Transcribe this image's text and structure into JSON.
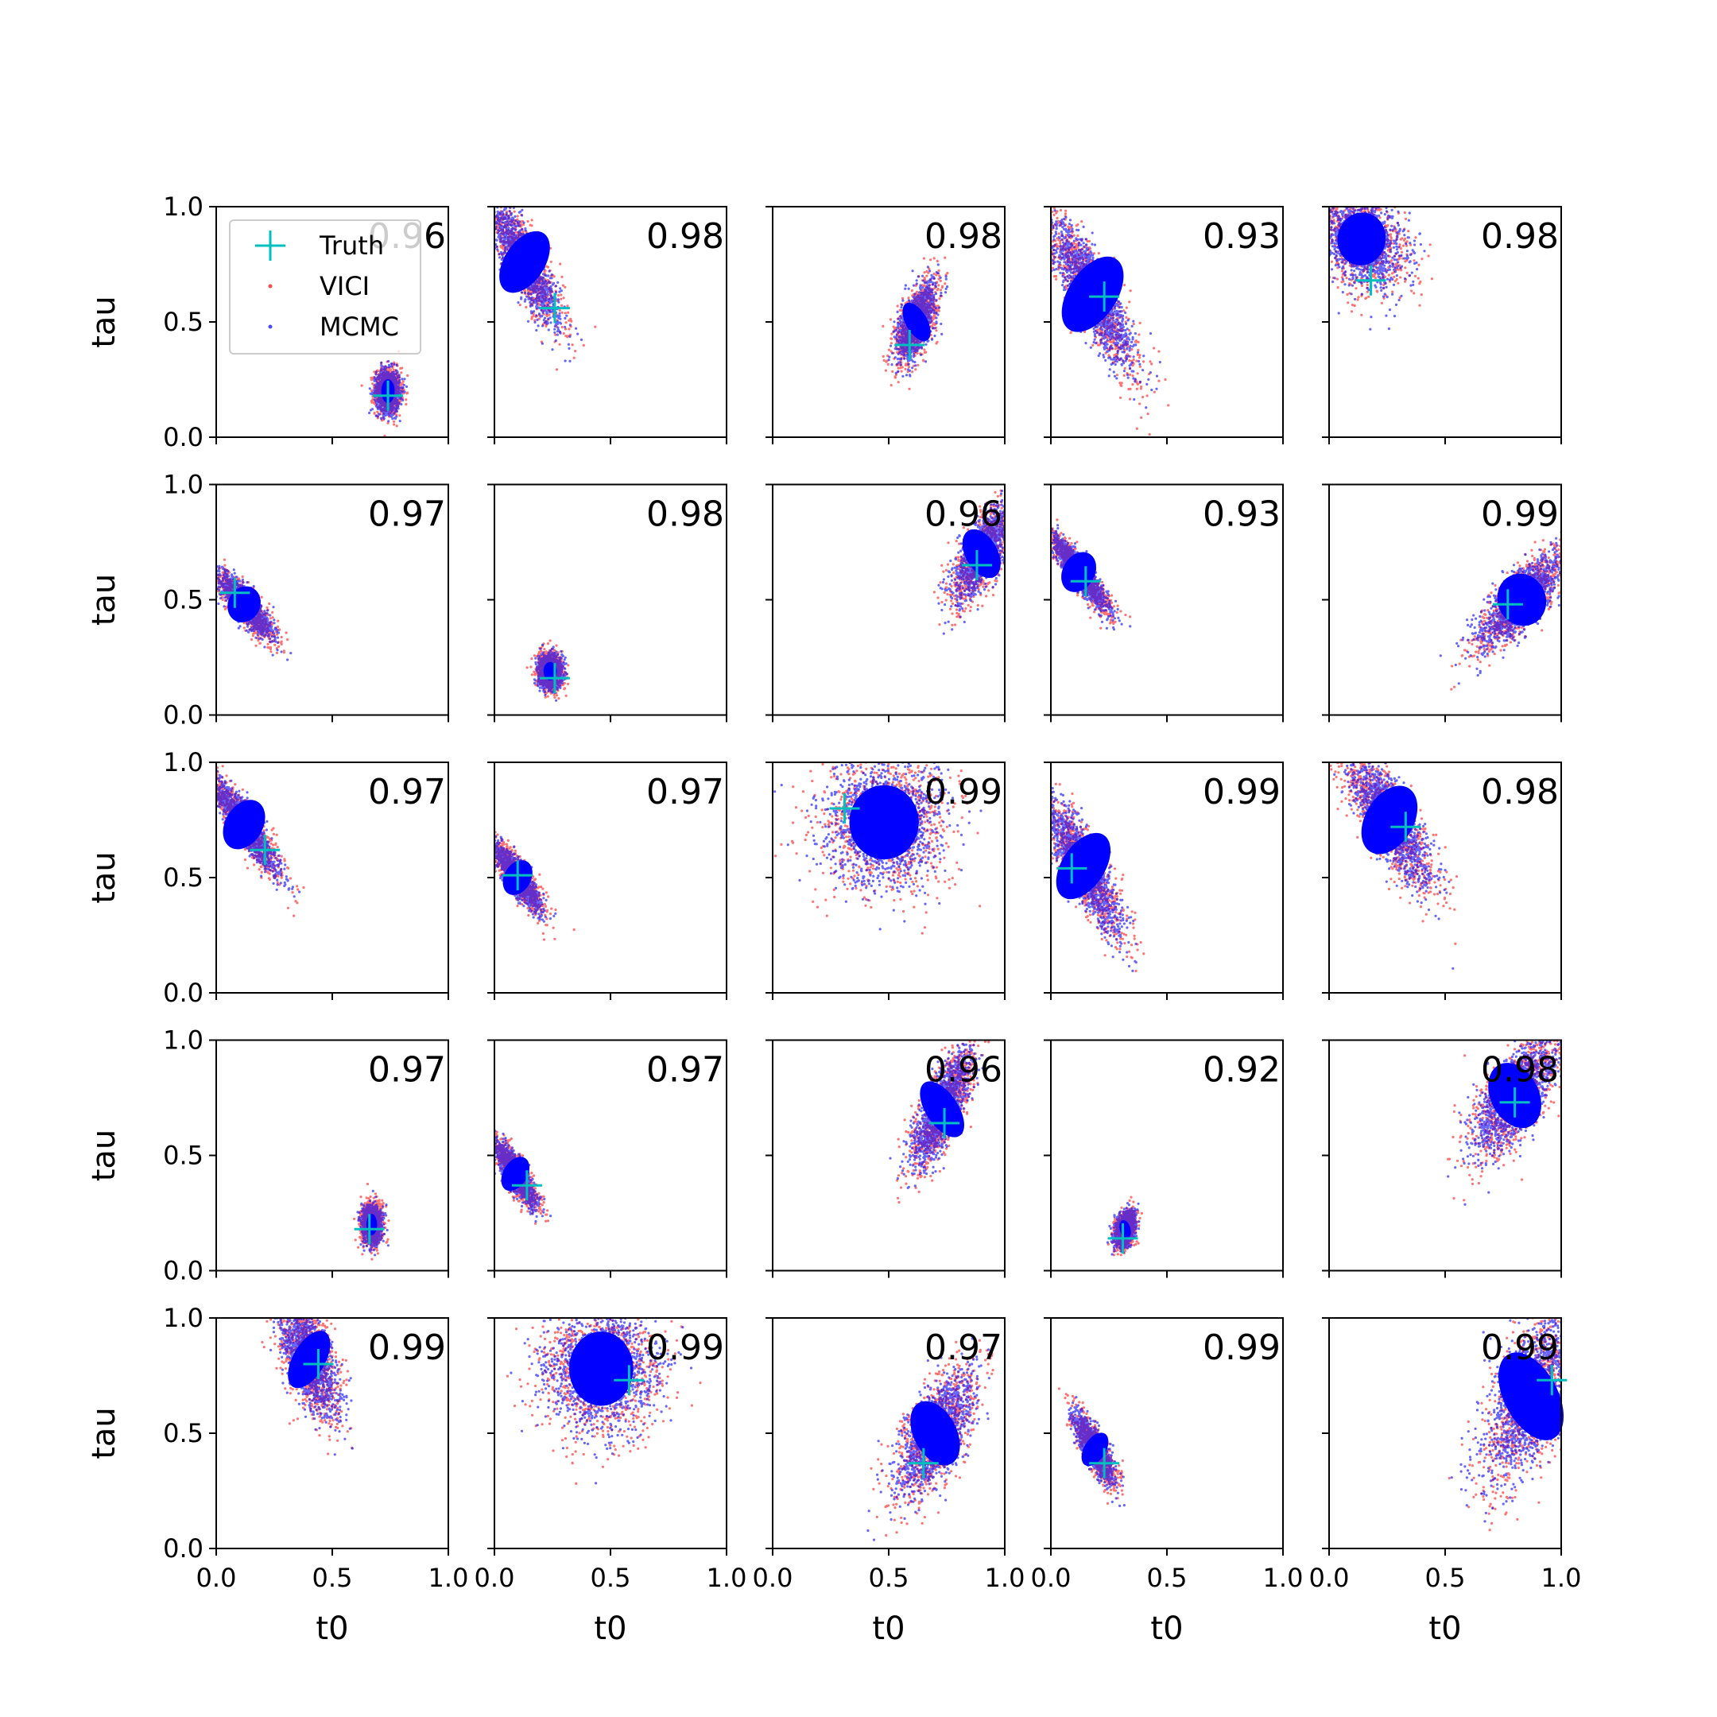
{
  "chart_data": {
    "type": "scatter",
    "grid": {
      "rows": 5,
      "cols": 5
    },
    "xlabel": "t0",
    "ylabel": "tau",
    "xlim": [
      0,
      1
    ],
    "ylim": [
      0,
      1
    ],
    "ticks": [
      0.0,
      0.5,
      1.0
    ],
    "tick_labels": [
      "0.0",
      "0.5",
      "1.0"
    ],
    "grid_lines": false,
    "legend": {
      "placement": "top-left of first panel",
      "entries": [
        {
          "label": "Truth",
          "marker": "plus",
          "color": "#00bfbf"
        },
        {
          "label": "VICI",
          "marker": "dot",
          "color": "#ff0000"
        },
        {
          "label": "MCMC",
          "marker": "dot",
          "color": "#0000ff"
        }
      ]
    },
    "colors": {
      "truth": "#00bfbf",
      "vici": "#ff0000",
      "mcmc": "#0000ff"
    },
    "panels": [
      {
        "score": "0.96",
        "truth": [
          0.74,
          0.18
        ],
        "cloud": {
          "cx": 0.74,
          "cy": 0.2,
          "sx": 0.025,
          "sy": 0.045,
          "rho": 0.0
        }
      },
      {
        "score": "0.98",
        "truth": [
          0.26,
          0.56
        ],
        "cloud": {
          "cx": 0.13,
          "cy": 0.76,
          "sx": 0.075,
          "sy": 0.13,
          "rho": -0.85
        }
      },
      {
        "score": "0.98",
        "truth": [
          0.59,
          0.4
        ],
        "cloud": {
          "cx": 0.62,
          "cy": 0.5,
          "sx": 0.04,
          "sy": 0.08,
          "rho": 0.6
        }
      },
      {
        "score": "0.93",
        "truth": [
          0.23,
          0.61
        ],
        "cloud": {
          "cx": 0.18,
          "cy": 0.62,
          "sx": 0.09,
          "sy": 0.16,
          "rho": -0.85
        }
      },
      {
        "score": "0.98",
        "truth": [
          0.18,
          0.68
        ],
        "cloud": {
          "cx": 0.14,
          "cy": 0.86,
          "sx": 0.09,
          "sy": 0.1,
          "rho": -0.3
        }
      },
      {
        "score": "0.97",
        "truth": [
          0.08,
          0.53
        ],
        "cloud": {
          "cx": 0.12,
          "cy": 0.48,
          "sx": 0.06,
          "sy": 0.07,
          "rho": -0.85
        }
      },
      {
        "score": "0.98",
        "truth": [
          0.26,
          0.16
        ],
        "cloud": {
          "cx": 0.24,
          "cy": 0.19,
          "sx": 0.025,
          "sy": 0.035,
          "rho": 0.0
        }
      },
      {
        "score": "0.96",
        "truth": [
          0.88,
          0.65
        ],
        "cloud": {
          "cx": 0.9,
          "cy": 0.7,
          "sx": 0.06,
          "sy": 0.1,
          "rho": 0.7
        }
      },
      {
        "score": "0.93",
        "truth": [
          0.15,
          0.58
        ],
        "cloud": {
          "cx": 0.12,
          "cy": 0.62,
          "sx": 0.06,
          "sy": 0.08,
          "rho": -0.9
        }
      },
      {
        "score": "0.99",
        "truth": [
          0.77,
          0.48
        ],
        "cloud": {
          "cx": 0.83,
          "cy": 0.5,
          "sx": 0.09,
          "sy": 0.1,
          "rho": 0.8
        }
      },
      {
        "score": "0.97",
        "truth": [
          0.21,
          0.62
        ],
        "cloud": {
          "cx": 0.12,
          "cy": 0.73,
          "sx": 0.07,
          "sy": 0.1,
          "rho": -0.9
        }
      },
      {
        "score": "0.97",
        "truth": [
          0.1,
          0.51
        ],
        "cloud": {
          "cx": 0.1,
          "cy": 0.5,
          "sx": 0.05,
          "sy": 0.07,
          "rho": -0.85
        }
      },
      {
        "score": "0.99",
        "truth": [
          0.31,
          0.8
        ],
        "cloud": {
          "cx": 0.48,
          "cy": 0.74,
          "sx": 0.13,
          "sy": 0.14,
          "rho": 0.0
        }
      },
      {
        "score": "0.99",
        "truth": [
          0.09,
          0.54
        ],
        "cloud": {
          "cx": 0.14,
          "cy": 0.55,
          "sx": 0.08,
          "sy": 0.14,
          "rho": -0.85
        }
      },
      {
        "score": "0.98",
        "truth": [
          0.33,
          0.72
        ],
        "cloud": {
          "cx": 0.26,
          "cy": 0.75,
          "sx": 0.09,
          "sy": 0.14,
          "rho": -0.8
        }
      },
      {
        "score": "0.97",
        "truth": [
          0.66,
          0.18
        ],
        "cloud": {
          "cx": 0.67,
          "cy": 0.2,
          "sx": 0.02,
          "sy": 0.04,
          "rho": 0.0
        }
      },
      {
        "score": "0.97",
        "truth": [
          0.14,
          0.37
        ],
        "cloud": {
          "cx": 0.09,
          "cy": 0.42,
          "sx": 0.045,
          "sy": 0.07,
          "rho": -0.85
        }
      },
      {
        "score": "0.96",
        "truth": [
          0.74,
          0.64
        ],
        "cloud": {
          "cx": 0.73,
          "cy": 0.7,
          "sx": 0.06,
          "sy": 0.12,
          "rho": 0.75
        }
      },
      {
        "score": "0.92",
        "truth": [
          0.31,
          0.14
        ],
        "cloud": {
          "cx": 0.32,
          "cy": 0.18,
          "sx": 0.02,
          "sy": 0.035,
          "rho": 0.3
        }
      },
      {
        "score": "0.98",
        "truth": [
          0.8,
          0.73
        ],
        "cloud": {
          "cx": 0.8,
          "cy": 0.76,
          "sx": 0.09,
          "sy": 0.13,
          "rho": 0.7
        }
      },
      {
        "score": "0.99",
        "truth": [
          0.44,
          0.8
        ],
        "cloud": {
          "cx": 0.4,
          "cy": 0.82,
          "sx": 0.06,
          "sy": 0.12,
          "rho": -0.6
        }
      },
      {
        "score": "0.99",
        "truth": [
          0.58,
          0.73
        ],
        "cloud": {
          "cx": 0.46,
          "cy": 0.78,
          "sx": 0.12,
          "sy": 0.14,
          "rho": 0.0
        }
      },
      {
        "score": "0.97",
        "truth": [
          0.65,
          0.37
        ],
        "cloud": {
          "cx": 0.7,
          "cy": 0.5,
          "sx": 0.08,
          "sy": 0.13,
          "rho": 0.65
        }
      },
      {
        "score": "0.99",
        "truth": [
          0.23,
          0.37
        ],
        "cloud": {
          "cx": 0.19,
          "cy": 0.43,
          "sx": 0.04,
          "sy": 0.07,
          "rho": -0.8
        }
      },
      {
        "score": "0.99",
        "truth": [
          0.96,
          0.73
        ],
        "cloud": {
          "cx": 0.87,
          "cy": 0.66,
          "sx": 0.1,
          "sy": 0.18,
          "rho": 0.6
        }
      }
    ]
  }
}
